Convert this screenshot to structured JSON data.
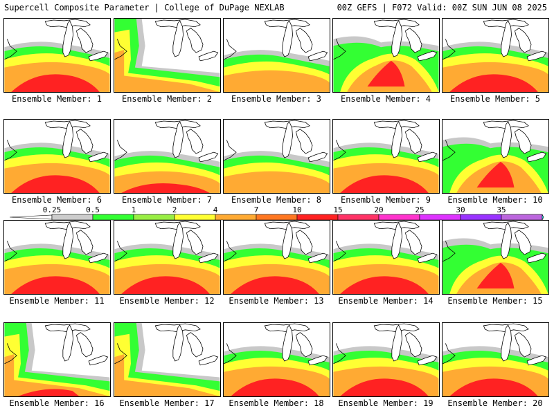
{
  "header": {
    "left_title": "Supercell Composite Parameter | College of DuPage NEXLAB",
    "right_title": "00Z GEFS | F072 Valid: 00Z SUN JUN 08 2025"
  },
  "panels": [
    {
      "label": "Ensemble Member: 1",
      "pattern": "zonal",
      "intensity": 0.85
    },
    {
      "label": "Ensemble Member: 2",
      "pattern": "west",
      "intensity": 0.7
    },
    {
      "label": "Ensemble Member: 3",
      "pattern": "zonal-south",
      "intensity": 0.55
    },
    {
      "label": "Ensemble Member: 4",
      "pattern": "center",
      "intensity": 0.9
    },
    {
      "label": "Ensemble Member: 5",
      "pattern": "zonal",
      "intensity": 0.75
    },
    {
      "label": "Ensemble Member: 6",
      "pattern": "zonal",
      "intensity": 0.9
    },
    {
      "label": "Ensemble Member: 7",
      "pattern": "zonal-south",
      "intensity": 0.8
    },
    {
      "label": "Ensemble Member: 8",
      "pattern": "zonal-south",
      "intensity": 0.6
    },
    {
      "label": "Ensemble Member: 9",
      "pattern": "zonal",
      "intensity": 0.75
    },
    {
      "label": "Ensemble Member: 10",
      "pattern": "center",
      "intensity": 0.95
    },
    {
      "label": "Ensemble Member: 11",
      "pattern": "zonal",
      "intensity": 0.75
    },
    {
      "label": "Ensemble Member: 12",
      "pattern": "zonal",
      "intensity": 0.85
    },
    {
      "label": "Ensemble Member: 13",
      "pattern": "zonal",
      "intensity": 0.95
    },
    {
      "label": "Ensemble Member: 14",
      "pattern": "zonal",
      "intensity": 0.8
    },
    {
      "label": "Ensemble Member: 15",
      "pattern": "center",
      "intensity": 0.85
    },
    {
      "label": "Ensemble Member: 16",
      "pattern": "west",
      "intensity": 0.8
    },
    {
      "label": "Ensemble Member: 17",
      "pattern": "west",
      "intensity": 0.6
    },
    {
      "label": "Ensemble Member: 18",
      "pattern": "zonal",
      "intensity": 0.75
    },
    {
      "label": "Ensemble Member: 19",
      "pattern": "zonal",
      "intensity": 0.85
    },
    {
      "label": "Ensemble Member: 20",
      "pattern": "zonal",
      "intensity": 0.85
    }
  ],
  "colorbar": {
    "labels": [
      "0.25",
      "0.5",
      "1",
      "2",
      "4",
      "7",
      "10",
      "15",
      "20",
      "25",
      "30",
      "35"
    ],
    "colors": [
      "#cccccc",
      "#33ff33",
      "#99ee44",
      "#ffff33",
      "#ffaa33",
      "#ff7722",
      "#ff2222",
      "#ff3366",
      "#ff33cc",
      "#dd33ff",
      "#9933ff",
      "#bb66dd",
      "#33ffff"
    ]
  },
  "palette": {
    "gray": "#c8c8c8",
    "green": "#33ff33",
    "lightgreen": "#aaee55",
    "yellow": "#ffff33",
    "orange": "#ffaa33",
    "darkorange": "#ff7722",
    "red": "#ff2222",
    "pink": "#ff3366"
  }
}
